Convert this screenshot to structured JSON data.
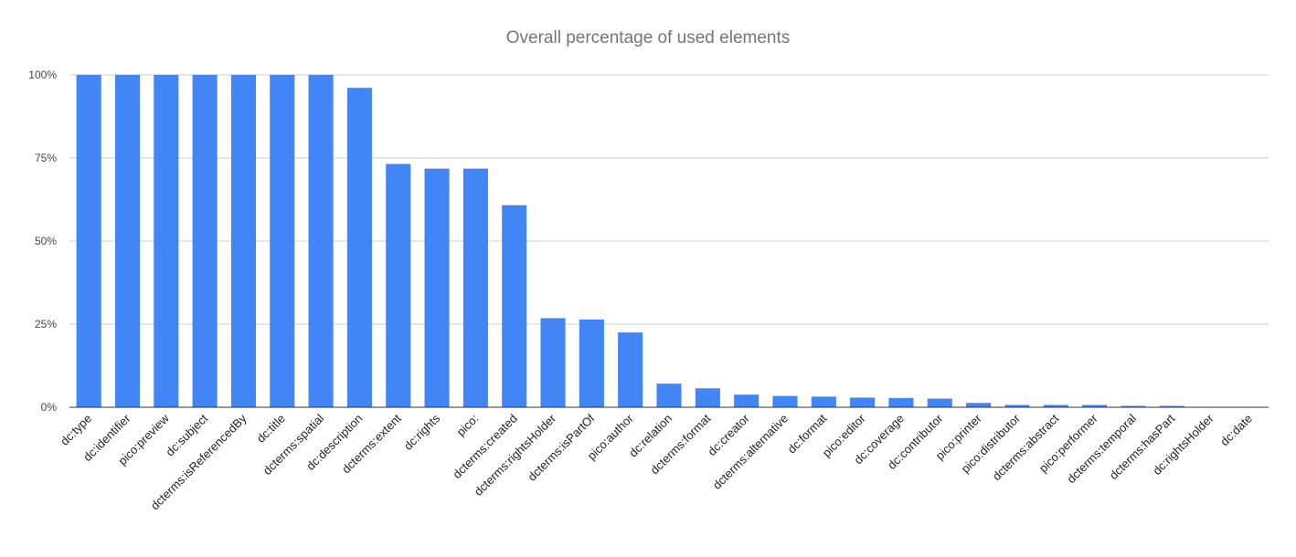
{
  "chart_data": {
    "type": "bar",
    "title": "Overall percentage of used elements",
    "xlabel": "",
    "ylabel": "",
    "ylim": [
      0,
      100
    ],
    "yticks": [
      0,
      25,
      50,
      75,
      100
    ],
    "ytick_labels": [
      "0%",
      "25%",
      "50%",
      "75%",
      "100%"
    ],
    "grid": true,
    "legend": "none",
    "bar_color": "#4285f4",
    "categories": [
      "dc:type",
      "dc:identifier",
      "pico:preview",
      "dc:subject",
      "dcterms:isReferencedBy",
      "dc:title",
      "dcterms:spatial",
      "dc:description",
      "dcterms:extent",
      "dc:rights",
      "pico:",
      "dcterms:created",
      "dcterms:rightsHolder",
      "dcterms:isPartOf",
      "pico:author",
      "dc:relation",
      "dcterms:format",
      "dc:creator",
      "dcterms:alternative",
      "dc:format",
      "pico:editor",
      "dc:coverage",
      "dc:contributor",
      "pico:printer",
      "pico:distributor",
      "dcterms:abstract",
      "pico:performer",
      "dcterms:temporal",
      "dcterms:hasPart",
      "dc:rightsHolder",
      "dc:date"
    ],
    "values": [
      100,
      100,
      100,
      100,
      100,
      100,
      100,
      96.1,
      73.2,
      71.8,
      71.8,
      60.8,
      26.8,
      26.4,
      22.5,
      7.1,
      5.7,
      3.8,
      3.4,
      3.2,
      2.9,
      2.8,
      2.6,
      1.3,
      0.7,
      0.7,
      0.7,
      0.4,
      0.4,
      0.1,
      0
    ]
  }
}
